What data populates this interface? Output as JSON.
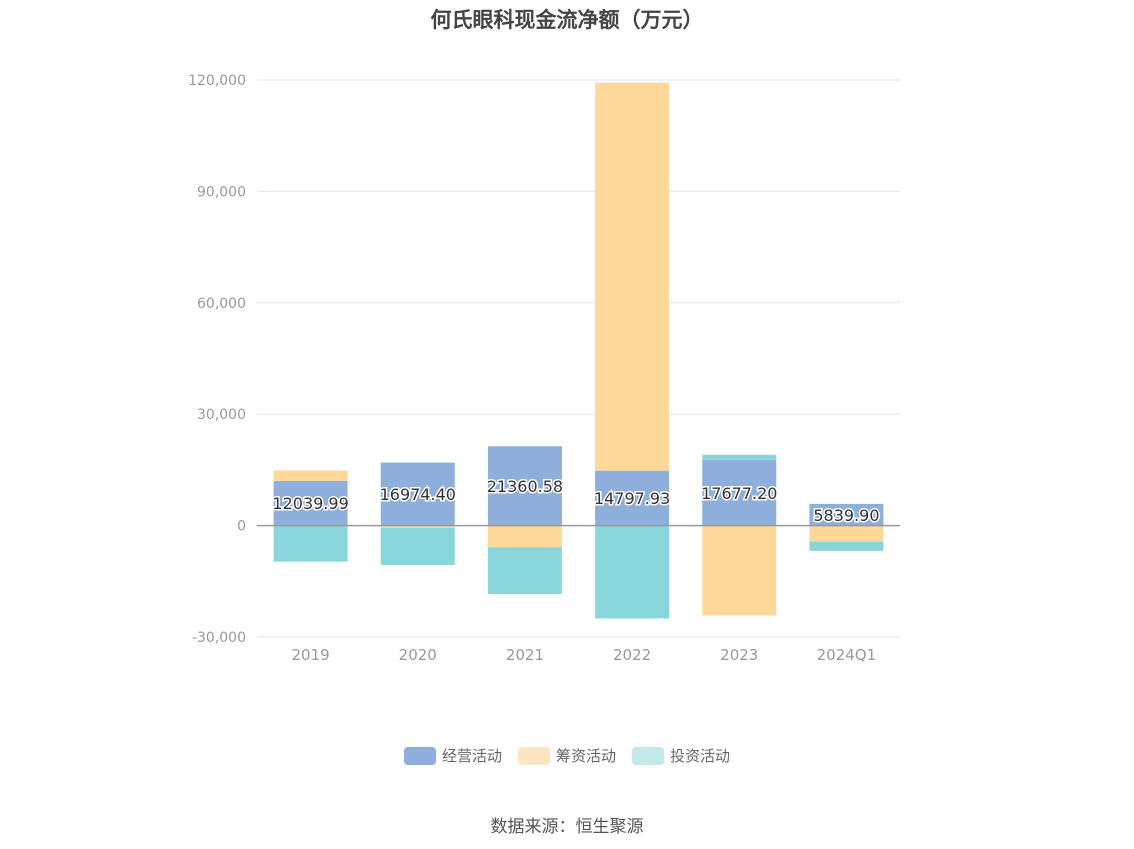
{
  "title": "何氏眼科现金流净额（万元）",
  "source": "数据来源：恒生聚源",
  "colors": {
    "operating": "#8eaedb",
    "financing": "#fed89a",
    "investing": "#88d6d9",
    "legend_operating": "#8eaedb",
    "legend_financing": "#fde5c1",
    "legend_investing": "#c2eaec",
    "grid": "#e1e4ef",
    "zero": "#999999",
    "tick": "#999999"
  },
  "legend": [
    "经营活动",
    "筹资活动",
    "投资活动"
  ],
  "chart_data": {
    "type": "bar",
    "stacked": true,
    "categories": [
      "2019",
      "2020",
      "2021",
      "2022",
      "2023",
      "2024Q1"
    ],
    "series": [
      {
        "name": "经营活动",
        "values": [
          12039.99,
          16974.4,
          21360.58,
          14797.93,
          17677.2,
          5839.9
        ]
      },
      {
        "name": "筹资活动",
        "values": [
          2800,
          -600,
          -5800,
          104500,
          -24200,
          -4300
        ]
      },
      {
        "name": "投资活动",
        "values": [
          -9700,
          -10000,
          -12600,
          -25000,
          1400,
          -2500
        ]
      }
    ],
    "data_labels": [
      "12039.99",
      "16974.40",
      "21360.58",
      "14797.93",
      "17677.20",
      "5839.90"
    ],
    "ylim": [
      -30000,
      120000
    ],
    "yticks": [
      -30000,
      0,
      30000,
      60000,
      90000,
      120000
    ],
    "ytick_labels": [
      "-30,000",
      "0",
      "30,000",
      "60,000",
      "90,000",
      "120,000"
    ],
    "grid": true,
    "legend_position": "bottom"
  }
}
